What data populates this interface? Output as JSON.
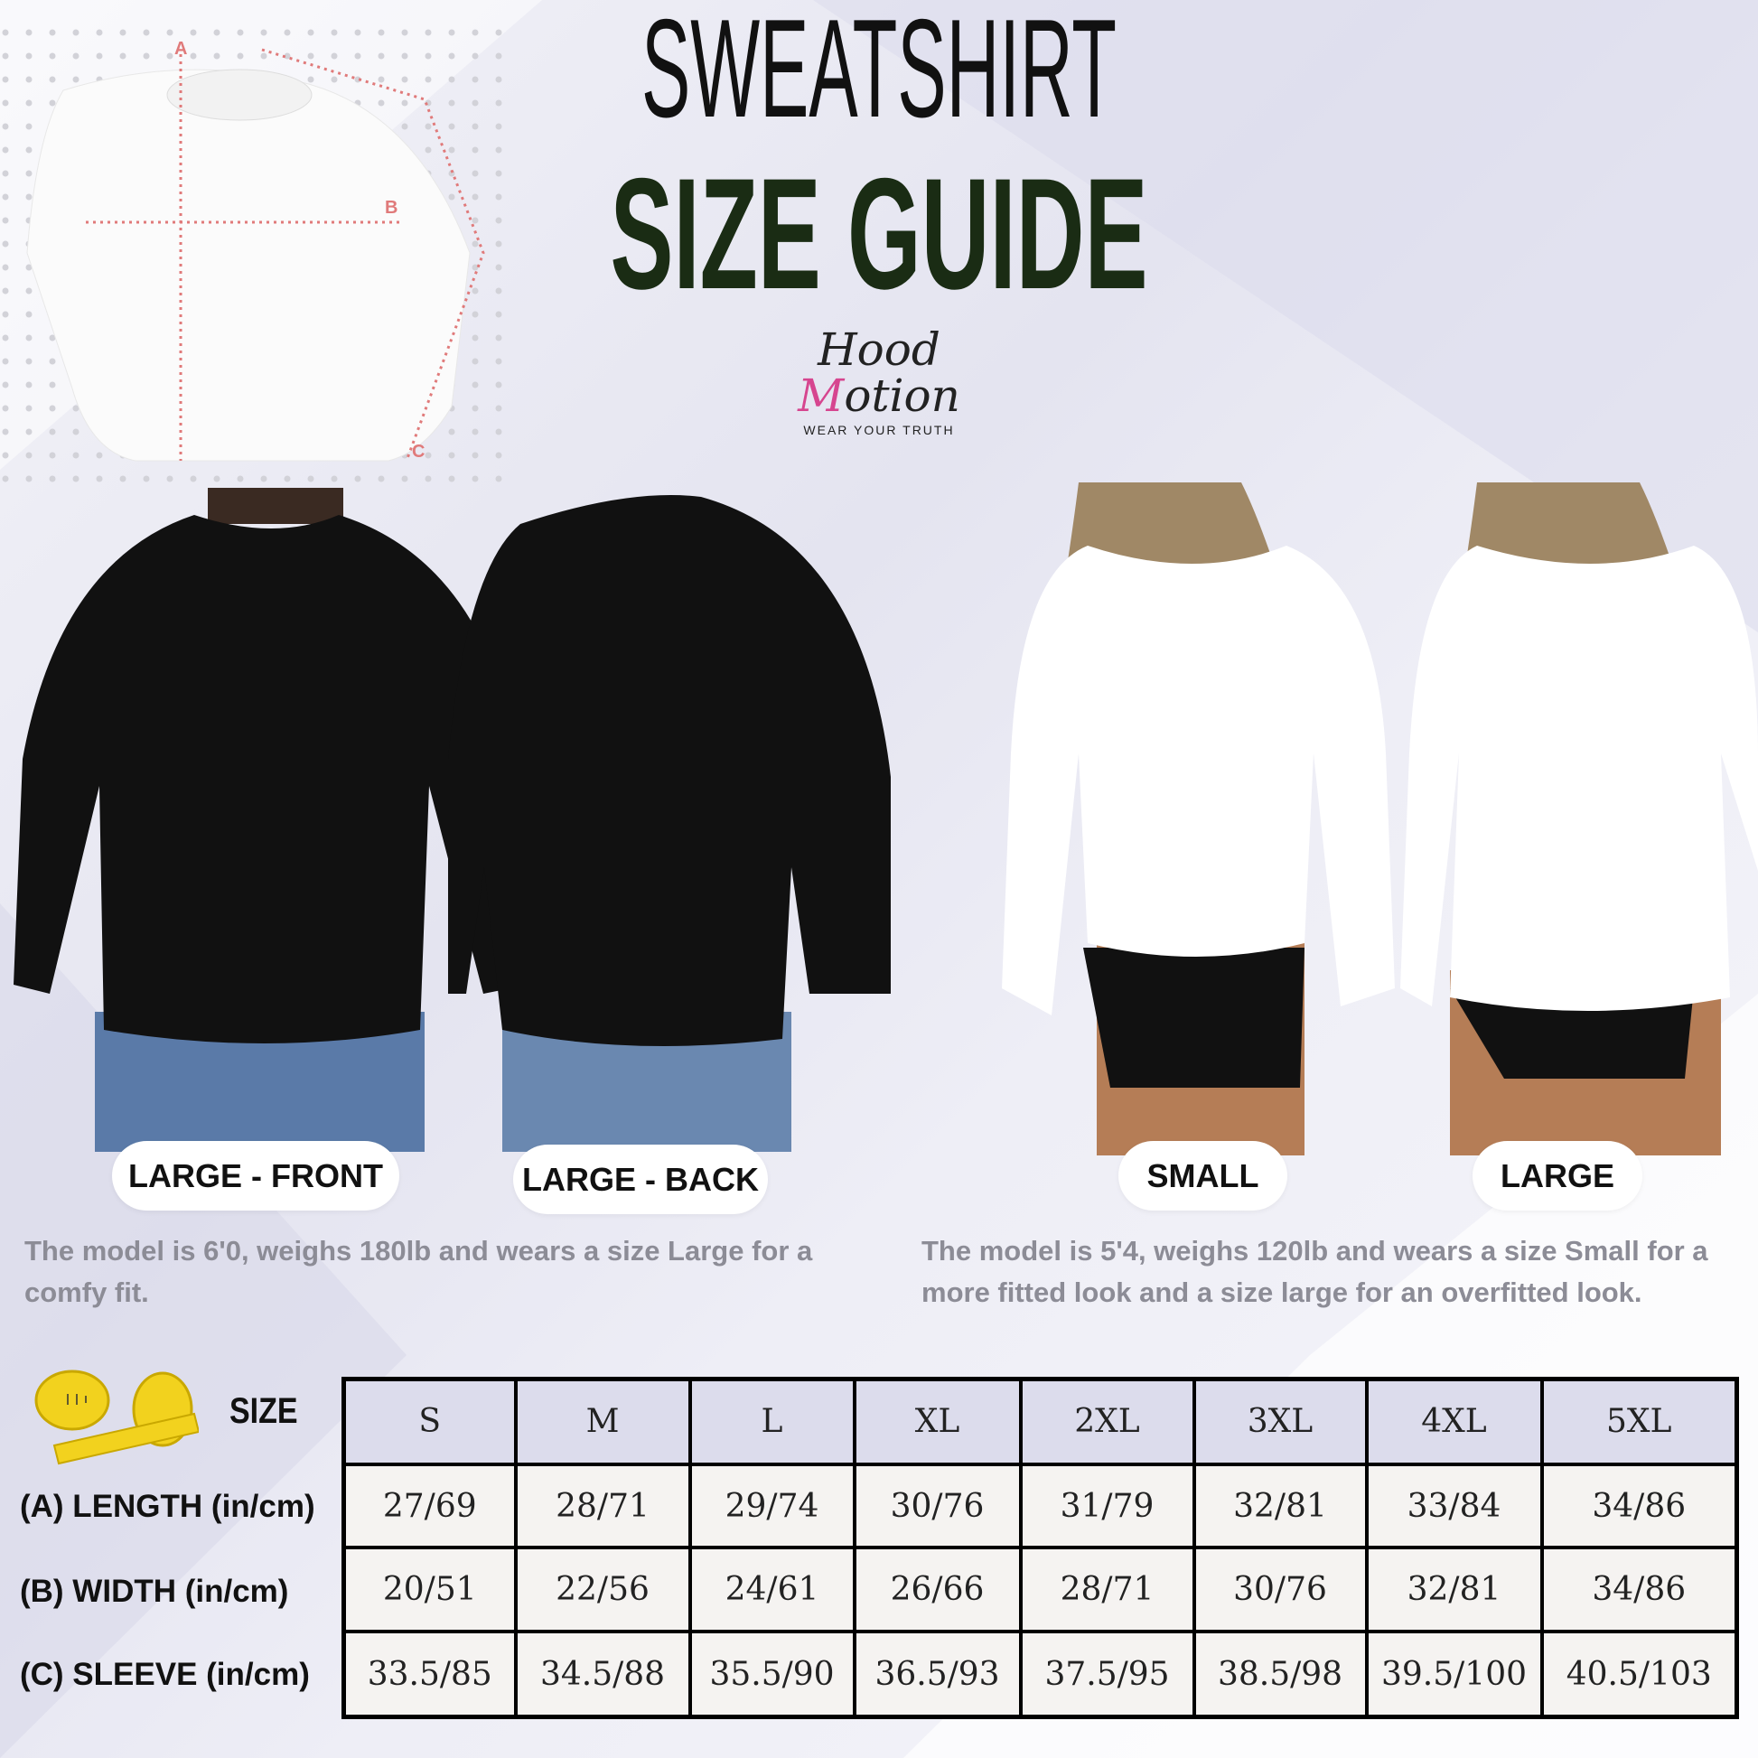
{
  "header": {
    "title_line1": "SWEATSHIRT",
    "title_line2": "SIZE GUIDE",
    "title_color": "#1a2c14"
  },
  "logo": {
    "word1": "Hood",
    "word2_first": "M",
    "word2_rest": "otion",
    "tagline": "WEAR YOUR TRUTH",
    "accent": "#d6458f"
  },
  "diagram": {
    "labels": [
      "A",
      "B",
      "C"
    ],
    "line_color": "#e07a7a"
  },
  "photos": [
    {
      "label": "LARGE - FRONT",
      "garment_color": "#111111"
    },
    {
      "label": "LARGE - BACK",
      "garment_color": "#111111"
    },
    {
      "label": "SMALL",
      "garment_color": "#ffffff"
    },
    {
      "label": "LARGE",
      "garment_color": "#ffffff"
    }
  ],
  "captions": {
    "male": "The model is 6'0, weighs 180lb and wears a size Large for a comfy fit.",
    "female": "The model is 5'4, weighs 120lb and wears a size Small for a more fitted look and a size large for an overfitted look."
  },
  "table": {
    "size_label": "SIZE",
    "sizes": [
      "S",
      "M",
      "L",
      "XL",
      "2XL",
      "3XL",
      "4XL",
      "5XL"
    ],
    "rows": [
      {
        "label": "(A) LENGTH (in/cm)",
        "values": [
          "27/69",
          "28/71",
          "29/74",
          "30/76",
          "31/79",
          "32/81",
          "33/84",
          "34/86"
        ]
      },
      {
        "label": "(B) WIDTH (in/cm)",
        "values": [
          "20/51",
          "22/56",
          "24/61",
          "26/66",
          "28/71",
          "30/76",
          "32/81",
          "34/86"
        ]
      },
      {
        "label": "(C) SLEEVE (in/cm)",
        "values": [
          "33.5/85",
          "34.5/88",
          "35.5/90",
          "36.5/93",
          "37.5/95",
          "38.5/98",
          "39.5/100",
          "40.5/103"
        ]
      }
    ],
    "header_bg": "#dcdcec",
    "cell_bg": "#f5f3f1"
  }
}
